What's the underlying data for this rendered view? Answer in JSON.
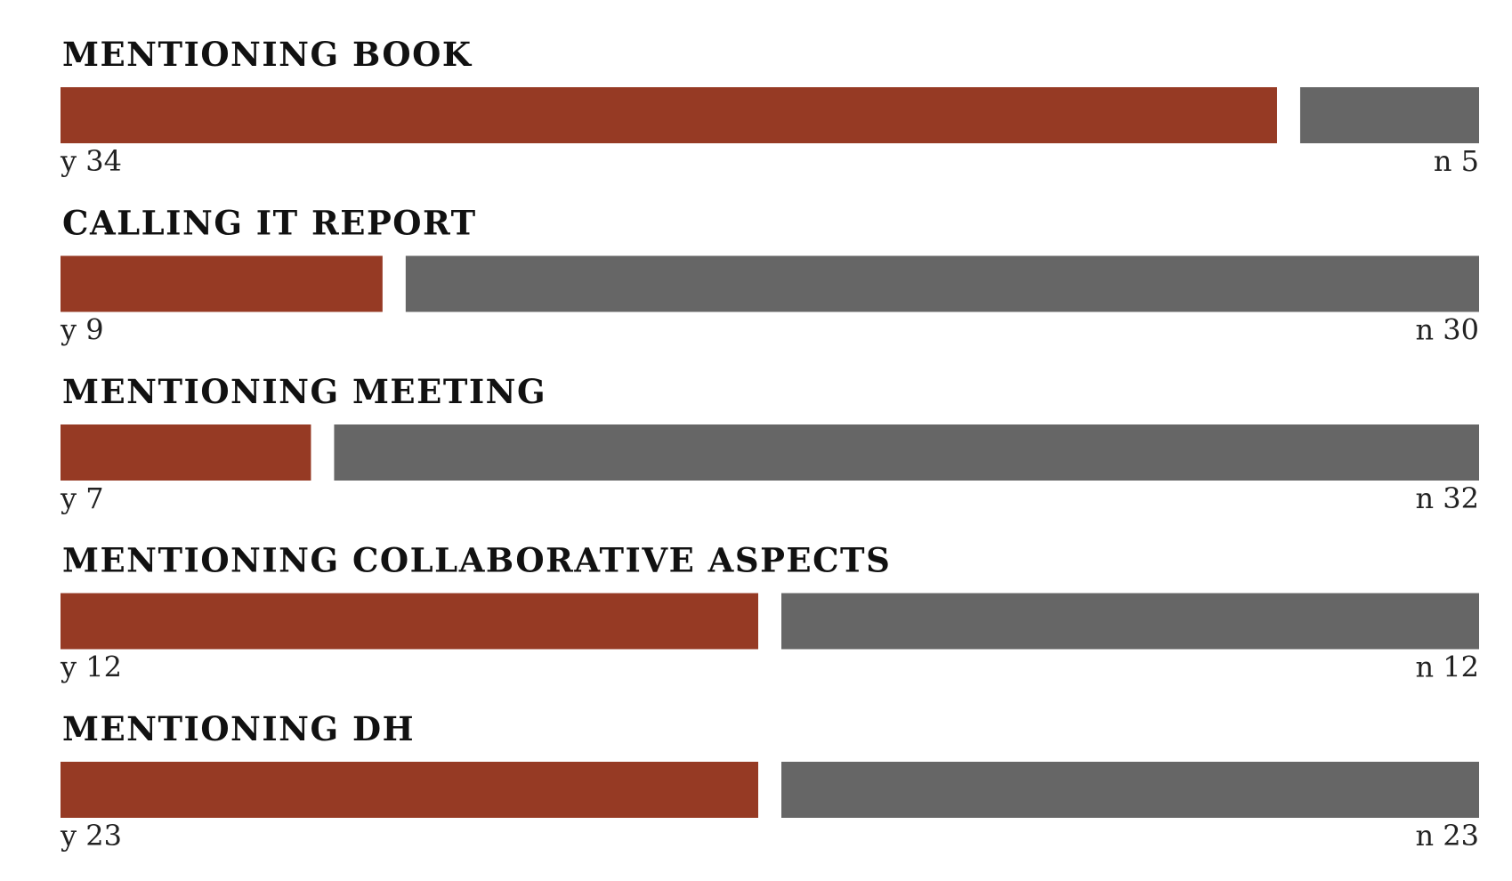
{
  "colors": {
    "yes": "#963a24",
    "no": "#666666"
  },
  "chart_data": {
    "type": "bar",
    "orientation": "horizontal-stacked-split",
    "categories": [
      "MENTIONING BOOK",
      "CALLING IT REPORT",
      "MENTIONING MEETING",
      "MENTIONING COLLABORATIVE ASPECTS",
      "MENTIONING DH"
    ],
    "series": [
      {
        "name": "y",
        "values": [
          34,
          9,
          7,
          12,
          23
        ]
      },
      {
        "name": "n",
        "values": [
          5,
          30,
          32,
          12,
          23
        ]
      }
    ],
    "title": "",
    "xlabel": "",
    "ylabel": "",
    "grid": false,
    "legend": "none"
  }
}
